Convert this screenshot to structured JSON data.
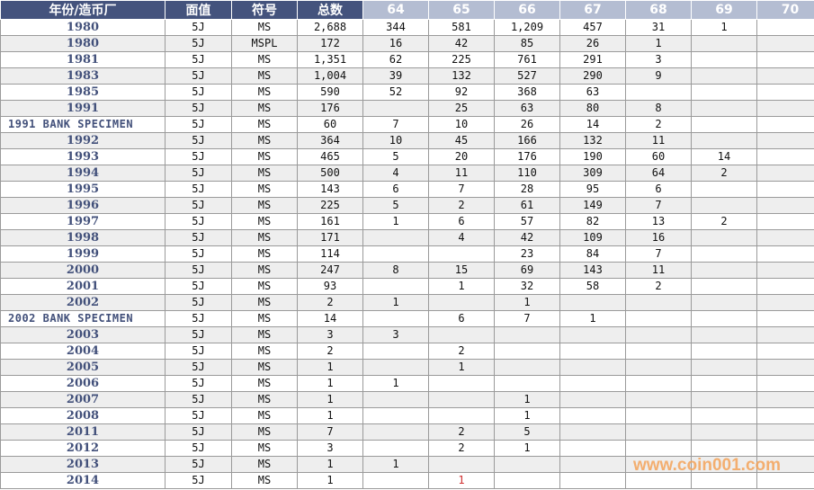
{
  "table": {
    "header": [
      "年份/造币厂",
      "面值",
      "符号",
      "总数",
      "64",
      "65",
      "66",
      "67",
      "68",
      "69",
      "70"
    ],
    "rows": [
      [
        "1980",
        "5J",
        "MS",
        "2,688",
        "344",
        "581",
        "1,209",
        "457",
        "31",
        "1",
        null
      ],
      [
        "1980",
        "5J",
        "MSPL",
        "172",
        "16",
        "42",
        "85",
        "26",
        "1",
        null,
        null
      ],
      [
        "1981",
        "5J",
        "MS",
        "1,351",
        "62",
        "225",
        "761",
        "291",
        "3",
        null,
        null
      ],
      [
        "1983",
        "5J",
        "MS",
        "1,004",
        "39",
        "132",
        "527",
        "290",
        "9",
        null,
        null
      ],
      [
        "1985",
        "5J",
        "MS",
        "590",
        "52",
        "92",
        "368",
        "63",
        null,
        null,
        null
      ],
      [
        "1991",
        "5J",
        "MS",
        "176",
        null,
        "25",
        "63",
        "80",
        "8",
        null,
        null
      ],
      [
        "1991 BANK SPECIMEN",
        "5J",
        "MS",
        "60",
        "7",
        "10",
        "26",
        "14",
        "2",
        null,
        null
      ],
      [
        "1992",
        "5J",
        "MS",
        "364",
        "10",
        "45",
        "166",
        "132",
        "11",
        null,
        null
      ],
      [
        "1993",
        "5J",
        "MS",
        "465",
        "5",
        "20",
        "176",
        "190",
        "60",
        "14",
        null
      ],
      [
        "1994",
        "5J",
        "MS",
        "500",
        "4",
        "11",
        "110",
        "309",
        "64",
        "2",
        null
      ],
      [
        "1995",
        "5J",
        "MS",
        "143",
        "6",
        "7",
        "28",
        "95",
        "6",
        null,
        null
      ],
      [
        "1996",
        "5J",
        "MS",
        "225",
        "5",
        "2",
        "61",
        "149",
        "7",
        null,
        null
      ],
      [
        "1997",
        "5J",
        "MS",
        "161",
        "1",
        "6",
        "57",
        "82",
        "13",
        "2",
        null
      ],
      [
        "1998",
        "5J",
        "MS",
        "171",
        null,
        "4",
        "42",
        "109",
        "16",
        null,
        null
      ],
      [
        "1999",
        "5J",
        "MS",
        "114",
        null,
        null,
        "23",
        "84",
        "7",
        null,
        null
      ],
      [
        "2000",
        "5J",
        "MS",
        "247",
        "8",
        "15",
        "69",
        "143",
        "11",
        null,
        null
      ],
      [
        "2001",
        "5J",
        "MS",
        "93",
        null,
        "1",
        "32",
        "58",
        "2",
        null,
        null
      ],
      [
        "2002",
        "5J",
        "MS",
        "2",
        "1",
        null,
        "1",
        null,
        null,
        null,
        null
      ],
      [
        "2002 BANK SPECIMEN",
        "5J",
        "MS",
        "14",
        null,
        "6",
        "7",
        "1",
        null,
        null,
        null
      ],
      [
        "2003",
        "5J",
        "MS",
        "3",
        "3",
        null,
        null,
        null,
        null,
        null,
        null
      ],
      [
        "2004",
        "5J",
        "MS",
        "2",
        null,
        "2",
        null,
        null,
        null,
        null,
        null
      ],
      [
        "2005",
        "5J",
        "MS",
        "1",
        null,
        "1",
        null,
        null,
        null,
        null,
        null
      ],
      [
        "2006",
        "5J",
        "MS",
        "1",
        "1",
        null,
        null,
        null,
        null,
        null,
        null
      ],
      [
        "2007",
        "5J",
        "MS",
        "1",
        null,
        null,
        "1",
        null,
        null,
        null,
        null
      ],
      [
        "2008",
        "5J",
        "MS",
        "1",
        null,
        null,
        "1",
        null,
        null,
        null,
        null
      ],
      [
        "2011",
        "5J",
        "MS",
        "7",
        null,
        "2",
        "5",
        null,
        null,
        null,
        null
      ],
      [
        "2012",
        "5J",
        "MS",
        "3",
        null,
        "2",
        "1",
        null,
        null,
        null,
        null
      ],
      [
        "2013",
        "5J",
        "MS",
        "1",
        "1",
        null,
        null,
        null,
        null,
        null,
        null
      ],
      [
        "2014",
        "5J",
        "MS",
        "1",
        null,
        "1",
        null,
        null,
        null,
        null,
        null
      ]
    ]
  },
  "watermark": "www.coin001.com"
}
